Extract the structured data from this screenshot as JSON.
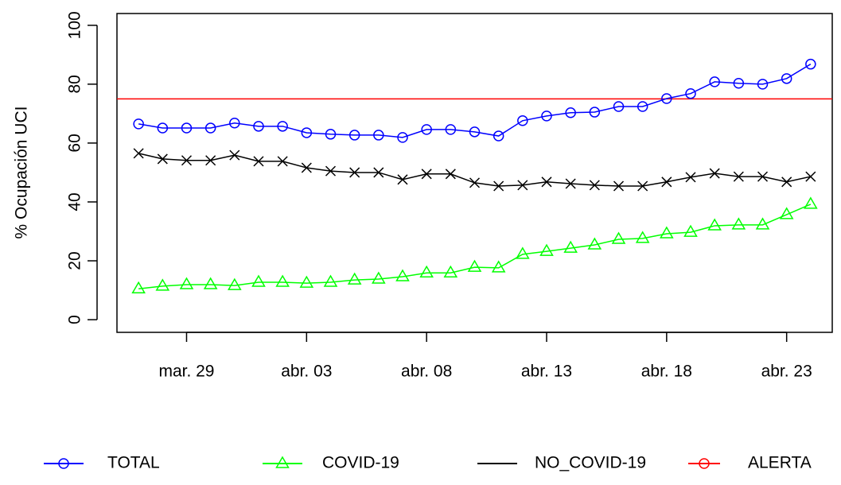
{
  "chart_data": {
    "type": "line",
    "y_label": "% Ocupación UCI",
    "categories": [
      null,
      null,
      "mar. 29",
      null,
      null,
      null,
      null,
      "abr. 03",
      null,
      null,
      null,
      null,
      "abr. 08",
      null,
      null,
      null,
      null,
      "abr. 13",
      null,
      null,
      null,
      null,
      "abr. 18",
      null,
      null,
      null,
      null,
      "abr. 23",
      null
    ],
    "series": [
      {
        "name": "TOTAL",
        "color": "#0000ff",
        "marker": "circle",
        "values": [
          66.5,
          65.1,
          65.1,
          65.1,
          66.8,
          65.7,
          65.7,
          63.5,
          63.0,
          62.7,
          62.7,
          61.9,
          64.6,
          64.6,
          63.8,
          62.4,
          67.6,
          69.2,
          70.3,
          70.5,
          72.4,
          72.4,
          75.1,
          76.8,
          80.8,
          80.3,
          80.0,
          81.9,
          86.8
        ]
      },
      {
        "name": "COVID-19",
        "color": "#00ff00",
        "marker": "triangle",
        "values": [
          10.5,
          11.4,
          11.9,
          11.9,
          11.6,
          12.7,
          12.7,
          12.4,
          12.7,
          13.5,
          13.8,
          14.6,
          15.9,
          15.9,
          17.8,
          17.6,
          22.2,
          23.2,
          24.3,
          25.4,
          27.3,
          27.6,
          29.2,
          29.7,
          31.9,
          32.2,
          32.2,
          35.7,
          39.2
        ]
      },
      {
        "name": "NO_COVID-19",
        "color": "#000000",
        "marker": "cross",
        "values": [
          56.5,
          54.6,
          54.1,
          54.1,
          55.9,
          53.8,
          53.8,
          51.6,
          50.5,
          50.0,
          50.0,
          47.6,
          49.5,
          49.5,
          46.5,
          45.4,
          45.7,
          46.8,
          46.2,
          45.7,
          45.4,
          45.4,
          46.8,
          48.4,
          49.7,
          48.6,
          48.6,
          46.8,
          48.6
        ]
      }
    ],
    "hline": {
      "name": "ALERTA",
      "color": "#ff0000",
      "marker": "circle",
      "value": 75
    },
    "ylim": [
      -4.3,
      104
    ],
    "yticks": [
      0,
      20,
      40,
      60,
      80,
      100
    ]
  }
}
